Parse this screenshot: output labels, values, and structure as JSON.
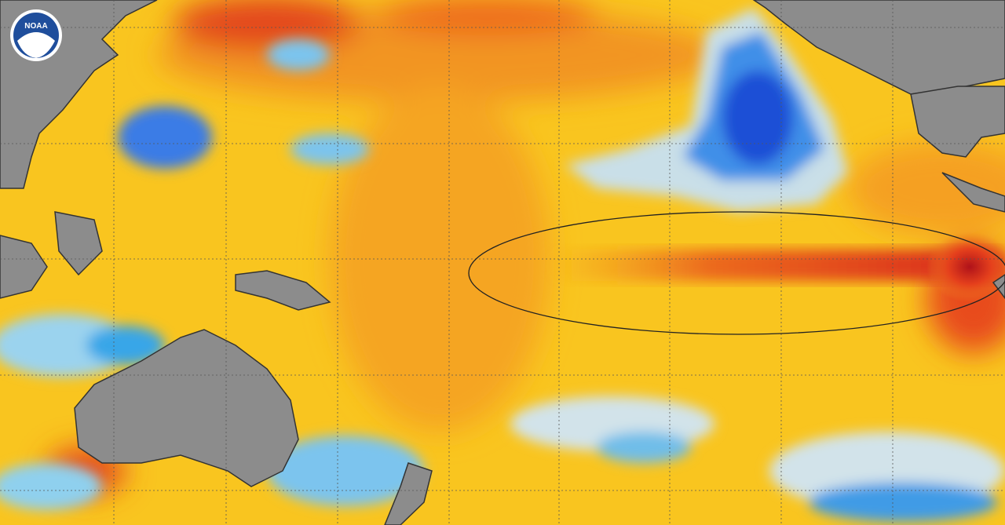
{
  "logo": {
    "text": "NOAA"
  }
}
